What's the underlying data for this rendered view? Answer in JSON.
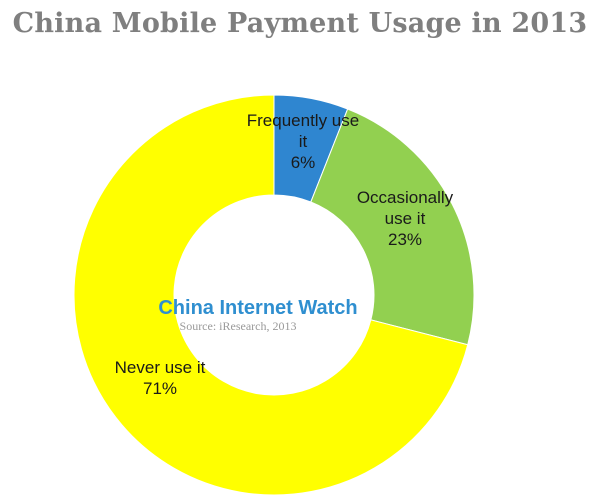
{
  "chart_data": {
    "type": "pie",
    "title": "China Mobile Payment Usage in 2013",
    "categories": [
      "Frequently use it",
      "Occasionally use it",
      "Never use it"
    ],
    "values": [
      6,
      23,
      71
    ],
    "value_labels": [
      "6%",
      "23%",
      "71%"
    ],
    "colors": [
      "#2f86d0",
      "#92d050",
      "#ffff00"
    ],
    "donut": true,
    "legend": "none",
    "labels": [
      {
        "lines": [
          "Frequently use",
          "it",
          "6%"
        ]
      },
      {
        "lines": [
          "Occasionally",
          "use it",
          "23%"
        ]
      },
      {
        "lines": [
          "Never use it",
          "71%"
        ]
      }
    ]
  },
  "watermark": {
    "brand": "China Internet Watch",
    "source": "Source: iResearch, 2013"
  }
}
